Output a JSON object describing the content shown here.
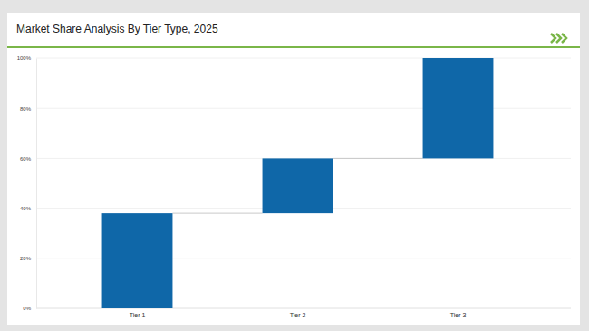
{
  "chart_data": {
    "type": "waterfall",
    "title": "Market Share Analysis By Tier Type, 2025",
    "categories": [
      "Tier 1",
      "Tier 2",
      "Tier 3"
    ],
    "values": [
      38,
      22,
      40
    ],
    "color": "#0f67a8",
    "ylim": [
      0,
      100
    ],
    "yticks": [
      {
        "value": 0,
        "label": "0%"
      },
      {
        "value": 20,
        "label": "20%"
      },
      {
        "value": 40,
        "label": "40%"
      },
      {
        "value": 60,
        "label": "60%"
      },
      {
        "value": 80,
        "label": "80%"
      },
      {
        "value": 100,
        "label": "100%"
      }
    ],
    "grid": true
  }
}
